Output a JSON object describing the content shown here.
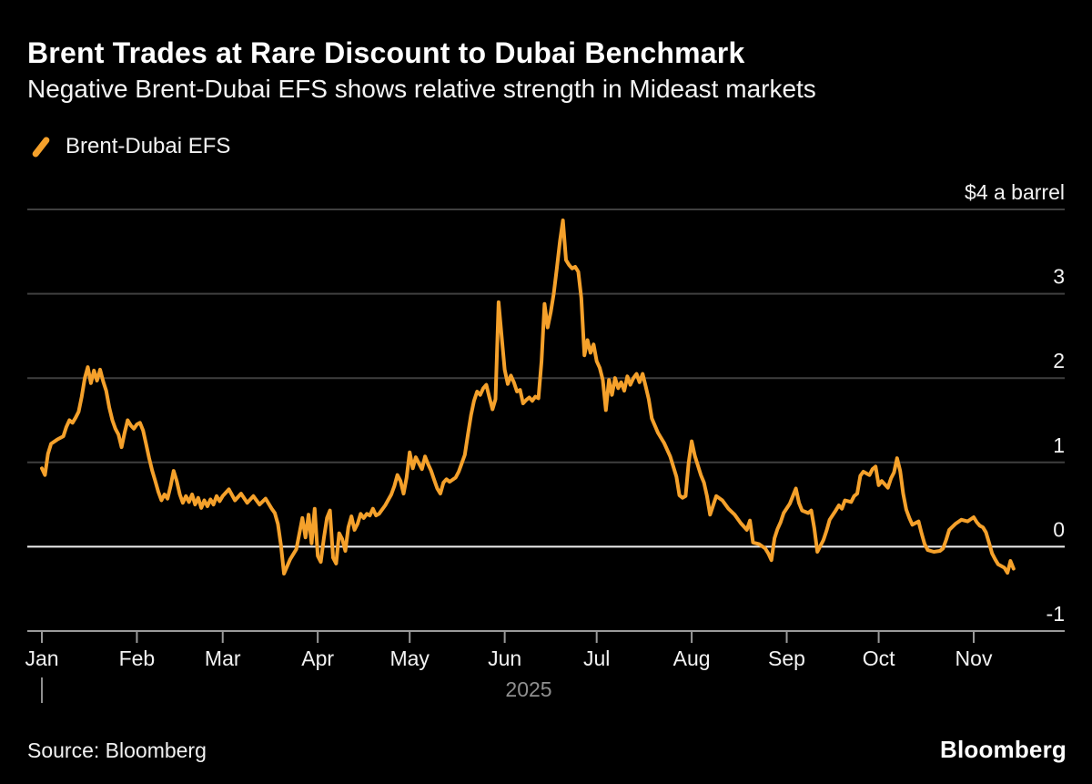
{
  "header": {
    "title": "Brent Trades at Rare Discount to Dubai Benchmark",
    "subtitle": "Negative Brent-Dubai EFS shows relative strength in Mideast markets"
  },
  "legend": {
    "label": "Brent-Dubai EFS"
  },
  "footer": {
    "source": "Source: Bloomberg",
    "logo": "Bloomberg"
  },
  "chart_data": {
    "type": "line",
    "title": "Brent Trades at Rare Discount to Dubai Benchmark",
    "subtitle": "Negative Brent-Dubai EFS shows relative strength in Mideast markets",
    "y_axis": {
      "unit_top_label": "$4 a barrel",
      "ticks": [
        {
          "value": 4,
          "label": "$4 a barrel"
        },
        {
          "value": 3,
          "label": "3"
        },
        {
          "value": 2,
          "label": "2"
        },
        {
          "value": 1,
          "label": "1"
        },
        {
          "value": 0,
          "label": "0"
        },
        {
          "value": -1,
          "label": "-1"
        }
      ],
      "range": [
        -1,
        4
      ],
      "zero_line_highlighted": true,
      "grid": true,
      "labels_position": "right"
    },
    "x_axis": {
      "year_label": "2025",
      "months": [
        {
          "label": "Jan",
          "start_day_of_year": 1
        },
        {
          "label": "Feb",
          "start_day_of_year": 32
        },
        {
          "label": "Mar",
          "start_day_of_year": 60
        },
        {
          "label": "Apr",
          "start_day_of_year": 91
        },
        {
          "label": "May",
          "start_day_of_year": 121
        },
        {
          "label": "Jun",
          "start_day_of_year": 152
        },
        {
          "label": "Jul",
          "start_day_of_year": 182
        },
        {
          "label": "Aug",
          "start_day_of_year": 213
        },
        {
          "label": "Sep",
          "start_day_of_year": 244
        },
        {
          "label": "Oct",
          "start_day_of_year": 274
        },
        {
          "label": "Nov",
          "start_day_of_year": 305
        }
      ],
      "year_separator_at_day": 1
    },
    "series": [
      {
        "name": "Brent-Dubai EFS",
        "color": "#F5A12B",
        "points": [
          [
            1,
            0.93
          ],
          [
            2,
            0.85
          ],
          [
            3,
            1.1
          ],
          [
            4,
            1.22
          ],
          [
            6,
            1.27
          ],
          [
            8,
            1.31
          ],
          [
            9,
            1.42
          ],
          [
            10,
            1.5
          ],
          [
            11,
            1.47
          ],
          [
            12,
            1.53
          ],
          [
            13,
            1.6
          ],
          [
            14,
            1.78
          ],
          [
            15,
            2.0
          ],
          [
            16,
            2.13
          ],
          [
            17,
            1.94
          ],
          [
            18,
            2.09
          ],
          [
            19,
            1.97
          ],
          [
            20,
            2.1
          ],
          [
            21,
            1.96
          ],
          [
            22,
            1.85
          ],
          [
            23,
            1.65
          ],
          [
            24,
            1.5
          ],
          [
            25,
            1.4
          ],
          [
            26,
            1.33
          ],
          [
            27,
            1.18
          ],
          [
            28,
            1.35
          ],
          [
            29,
            1.5
          ],
          [
            30,
            1.44
          ],
          [
            31,
            1.4
          ],
          [
            32,
            1.45
          ],
          [
            33,
            1.47
          ],
          [
            34,
            1.38
          ],
          [
            35,
            1.22
          ],
          [
            36,
            1.05
          ],
          [
            37,
            0.9
          ],
          [
            38,
            0.78
          ],
          [
            39,
            0.65
          ],
          [
            40,
            0.55
          ],
          [
            41,
            0.62
          ],
          [
            42,
            0.57
          ],
          [
            43,
            0.72
          ],
          [
            44,
            0.9
          ],
          [
            45,
            0.78
          ],
          [
            46,
            0.62
          ],
          [
            47,
            0.52
          ],
          [
            48,
            0.6
          ],
          [
            49,
            0.53
          ],
          [
            50,
            0.62
          ],
          [
            51,
            0.5
          ],
          [
            52,
            0.58
          ],
          [
            53,
            0.46
          ],
          [
            54,
            0.55
          ],
          [
            55,
            0.48
          ],
          [
            56,
            0.56
          ],
          [
            57,
            0.5
          ],
          [
            58,
            0.6
          ],
          [
            59,
            0.54
          ],
          [
            60,
            0.6
          ],
          [
            62,
            0.68
          ],
          [
            64,
            0.55
          ],
          [
            66,
            0.63
          ],
          [
            68,
            0.52
          ],
          [
            70,
            0.6
          ],
          [
            72,
            0.5
          ],
          [
            74,
            0.57
          ],
          [
            76,
            0.45
          ],
          [
            77,
            0.4
          ],
          [
            78,
            0.27
          ],
          [
            79,
            0.02
          ],
          [
            80,
            -0.32
          ],
          [
            82,
            -0.15
          ],
          [
            84,
            -0.03
          ],
          [
            86,
            0.34
          ],
          [
            87,
            0.11
          ],
          [
            88,
            0.38
          ],
          [
            89,
            0.04
          ],
          [
            90,
            0.45
          ],
          [
            91,
            -0.11
          ],
          [
            92,
            -0.18
          ],
          [
            93,
            0.1
          ],
          [
            94,
            0.34
          ],
          [
            95,
            0.43
          ],
          [
            96,
            -0.13
          ],
          [
            97,
            -0.2
          ],
          [
            98,
            0.16
          ],
          [
            99,
            0.09
          ],
          [
            100,
            -0.05
          ],
          [
            101,
            0.23
          ],
          [
            102,
            0.36
          ],
          [
            103,
            0.2
          ],
          [
            104,
            0.27
          ],
          [
            105,
            0.39
          ],
          [
            106,
            0.34
          ],
          [
            107,
            0.39
          ],
          [
            108,
            0.37
          ],
          [
            109,
            0.45
          ],
          [
            110,
            0.37
          ],
          [
            111,
            0.39
          ],
          [
            113,
            0.49
          ],
          [
            115,
            0.62
          ],
          [
            116,
            0.72
          ],
          [
            117,
            0.85
          ],
          [
            118,
            0.78
          ],
          [
            119,
            0.63
          ],
          [
            120,
            0.82
          ],
          [
            121,
            1.12
          ],
          [
            122,
            0.93
          ],
          [
            123,
            1.06
          ],
          [
            125,
            0.92
          ],
          [
            126,
            1.07
          ],
          [
            127,
            0.98
          ],
          [
            128,
            0.9
          ],
          [
            129,
            0.79
          ],
          [
            130,
            0.69
          ],
          [
            131,
            0.63
          ],
          [
            132,
            0.76
          ],
          [
            133,
            0.8
          ],
          [
            134,
            0.77
          ],
          [
            136,
            0.82
          ],
          [
            137,
            0.89
          ],
          [
            139,
            1.09
          ],
          [
            140,
            1.33
          ],
          [
            141,
            1.56
          ],
          [
            142,
            1.73
          ],
          [
            143,
            1.84
          ],
          [
            144,
            1.8
          ],
          [
            145,
            1.88
          ],
          [
            146,
            1.92
          ],
          [
            147,
            1.77
          ],
          [
            148,
            1.63
          ],
          [
            149,
            1.75
          ],
          [
            150,
            2.9
          ],
          [
            151,
            2.49
          ],
          [
            152,
            2.1
          ],
          [
            153,
            1.93
          ],
          [
            154,
            2.03
          ],
          [
            155,
            1.95
          ],
          [
            156,
            1.84
          ],
          [
            157,
            1.86
          ],
          [
            158,
            1.7
          ],
          [
            159,
            1.74
          ],
          [
            160,
            1.77
          ],
          [
            161,
            1.73
          ],
          [
            162,
            1.78
          ],
          [
            163,
            1.76
          ],
          [
            164,
            2.2
          ],
          [
            165,
            2.88
          ],
          [
            166,
            2.6
          ],
          [
            167,
            2.78
          ],
          [
            168,
            3.0
          ],
          [
            169,
            3.3
          ],
          [
            170,
            3.62
          ],
          [
            171,
            3.87
          ],
          [
            172,
            3.4
          ],
          [
            173,
            3.34
          ],
          [
            174,
            3.3
          ],
          [
            175,
            3.32
          ],
          [
            176,
            3.26
          ],
          [
            177,
            2.95
          ],
          [
            178,
            2.27
          ],
          [
            179,
            2.45
          ],
          [
            180,
            2.3
          ],
          [
            181,
            2.4
          ],
          [
            182,
            2.2
          ],
          [
            183,
            2.12
          ],
          [
            184,
            1.98
          ],
          [
            185,
            1.62
          ],
          [
            186,
            1.98
          ],
          [
            187,
            1.8
          ],
          [
            188,
            2.0
          ],
          [
            189,
            1.88
          ],
          [
            190,
            1.95
          ],
          [
            191,
            1.85
          ],
          [
            192,
            2.02
          ],
          [
            193,
            1.92
          ],
          [
            194,
            2.0
          ],
          [
            195,
            2.05
          ],
          [
            196,
            1.95
          ],
          [
            197,
            2.05
          ],
          [
            198,
            1.9
          ],
          [
            199,
            1.75
          ],
          [
            200,
            1.52
          ],
          [
            202,
            1.35
          ],
          [
            204,
            1.23
          ],
          [
            206,
            1.07
          ],
          [
            208,
            0.83
          ],
          [
            209,
            0.61
          ],
          [
            210,
            0.58
          ],
          [
            211,
            0.6
          ],
          [
            212,
            0.99
          ],
          [
            213,
            1.25
          ],
          [
            214,
            1.08
          ],
          [
            216,
            0.85
          ],
          [
            217,
            0.76
          ],
          [
            218,
            0.6
          ],
          [
            219,
            0.38
          ],
          [
            220,
            0.49
          ],
          [
            221,
            0.6
          ],
          [
            223,
            0.55
          ],
          [
            225,
            0.45
          ],
          [
            227,
            0.38
          ],
          [
            229,
            0.28
          ],
          [
            231,
            0.2
          ],
          [
            232,
            0.31
          ],
          [
            233,
            0.05
          ],
          [
            235,
            0.03
          ],
          [
            237,
            -0.02
          ],
          [
            238,
            -0.08
          ],
          [
            239,
            -0.16
          ],
          [
            240,
            0.1
          ],
          [
            241,
            0.21
          ],
          [
            242,
            0.29
          ],
          [
            243,
            0.4
          ],
          [
            245,
            0.51
          ],
          [
            247,
            0.69
          ],
          [
            248,
            0.52
          ],
          [
            249,
            0.43
          ],
          [
            251,
            0.4
          ],
          [
            252,
            0.43
          ],
          [
            253,
            0.22
          ],
          [
            254,
            -0.06
          ],
          [
            256,
            0.08
          ],
          [
            257,
            0.19
          ],
          [
            258,
            0.32
          ],
          [
            260,
            0.43
          ],
          [
            261,
            0.49
          ],
          [
            262,
            0.45
          ],
          [
            263,
            0.55
          ],
          [
            265,
            0.53
          ],
          [
            266,
            0.6
          ],
          [
            267,
            0.63
          ],
          [
            268,
            0.84
          ],
          [
            269,
            0.89
          ],
          [
            271,
            0.85
          ],
          [
            272,
            0.92
          ],
          [
            273,
            0.95
          ],
          [
            274,
            0.73
          ],
          [
            275,
            0.78
          ],
          [
            277,
            0.7
          ],
          [
            278,
            0.81
          ],
          [
            279,
            0.88
          ],
          [
            280,
            1.05
          ],
          [
            281,
            0.9
          ],
          [
            282,
            0.63
          ],
          [
            283,
            0.44
          ],
          [
            284,
            0.34
          ],
          [
            285,
            0.26
          ],
          [
            287,
            0.3
          ],
          [
            288,
            0.16
          ],
          [
            289,
            0.03
          ],
          [
            290,
            -0.04
          ],
          [
            292,
            -0.06
          ],
          [
            294,
            -0.05
          ],
          [
            295,
            -0.02
          ],
          [
            296,
            0.08
          ],
          [
            297,
            0.2
          ],
          [
            299,
            0.27
          ],
          [
            301,
            0.32
          ],
          [
            303,
            0.3
          ],
          [
            305,
            0.35
          ],
          [
            306,
            0.29
          ],
          [
            307,
            0.25
          ],
          [
            308,
            0.23
          ],
          [
            309,
            0.17
          ],
          [
            310,
            0.05
          ],
          [
            311,
            -0.08
          ],
          [
            312,
            -0.15
          ],
          [
            313,
            -0.21
          ],
          [
            315,
            -0.25
          ],
          [
            316,
            -0.31
          ],
          [
            317,
            -0.17
          ],
          [
            318,
            -0.26
          ]
        ]
      }
    ],
    "colors": {
      "background": "#000000",
      "line": "#F5A12B",
      "gridline": "#3F3F3F",
      "zero_line": "#EFEFEF",
      "axis": "#9A9A9A",
      "tick_label": "#F2F2F2",
      "year_label": "#8F8F8F"
    },
    "legend_position": "top-left",
    "source": "Bloomberg"
  }
}
